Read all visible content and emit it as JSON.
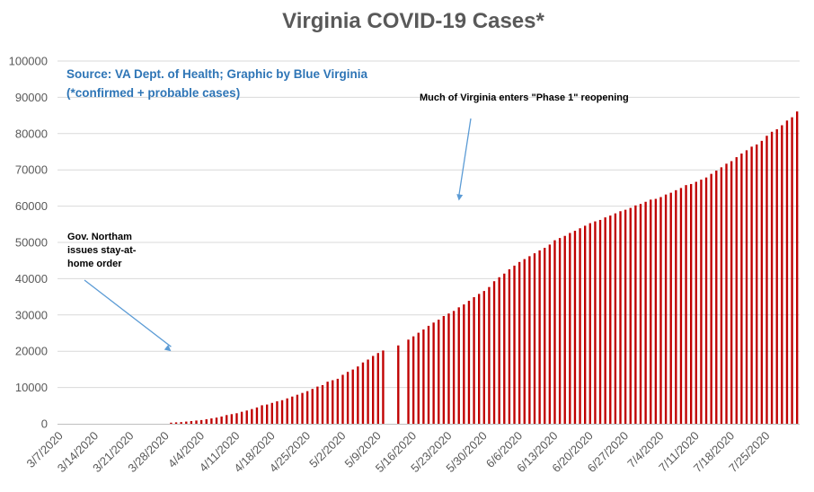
{
  "chart_data": {
    "type": "bar",
    "title": "Virginia COVID-19 Cases*",
    "source_line1": "Source: VA Dept. of Health; Graphic by Blue Virginia",
    "source_line2": "(*confirmed + probable cases)",
    "ylim": [
      0,
      100000
    ],
    "yticks": [
      0,
      10000,
      20000,
      30000,
      40000,
      50000,
      60000,
      70000,
      80000,
      90000,
      100000
    ],
    "start_date": "2020-03-07",
    "xtick_labels": [
      "3/7/2020",
      "3/14/2020",
      "3/21/2020",
      "3/28/2020",
      "4/4/2020",
      "4/11/2020",
      "4/18/2020",
      "4/25/2020",
      "5/2/2020",
      "5/9/2020",
      "5/16/2020",
      "5/23/2020",
      "5/30/2020",
      "6/6/2020",
      "6/13/2020",
      "6/20/2020",
      "6/27/2020",
      "7/4/2020",
      "7/11/2020",
      "7/18/2020",
      "7/25/2020"
    ],
    "bar_color": "#c00000",
    "grid": true,
    "values": [
      0,
      0,
      0,
      0,
      0,
      0,
      0,
      0,
      0,
      0,
      0,
      0,
      0,
      0,
      0,
      0,
      0,
      0,
      0,
      0,
      0,
      0,
      300,
      390,
      460,
      600,
      740,
      890,
      1020,
      1250,
      1480,
      1700,
      2000,
      2400,
      2650,
      2900,
      3300,
      3650,
      4050,
      4500,
      5100,
      5300,
      5750,
      6200,
      6500,
      7000,
      7500,
      8000,
      8500,
      8990,
      9600,
      10250,
      10650,
      11600,
      12000,
      12400,
      13500,
      14300,
      14950,
      15800,
      16900,
      17700,
      18700,
      19500,
      20200,
      0,
      0,
      21600,
      0,
      23200,
      24100,
      25100,
      26000,
      27000,
      27900,
      28700,
      29700,
      30400,
      31100,
      32100,
      32900,
      33900,
      34900,
      35800,
      36600,
      37700,
      39300,
      40400,
      41400,
      42600,
      43600,
      44600,
      45400,
      46200,
      47000,
      47800,
      48500,
      49400,
      50600,
      51200,
      51800,
      52600,
      53200,
      53900,
      54600,
      55300,
      55800,
      56200,
      56900,
      57400,
      58000,
      58600,
      59000,
      59500,
      60200,
      60600,
      61200,
      61800,
      62000,
      62500,
      63200,
      63700,
      64400,
      65000,
      65800,
      66100,
      66700,
      67300,
      67900,
      68900,
      69800,
      70700,
      71700,
      72400,
      73500,
      74500,
      75400,
      76400,
      77000,
      78000,
      79400,
      80500,
      81200,
      82300,
      83600,
      84500,
      86100
    ],
    "annotations": [
      {
        "lines": [
          "Much of Virginia enters \"Phase 1\" reopening"
        ],
        "arrow_date_index": 79,
        "arrow_value": 61500
      },
      {
        "lines": [
          "Gov. Northam",
          "issues stay-at-",
          "home order"
        ],
        "arrow_date_index": 22,
        "arrow_value": 20000
      }
    ]
  }
}
